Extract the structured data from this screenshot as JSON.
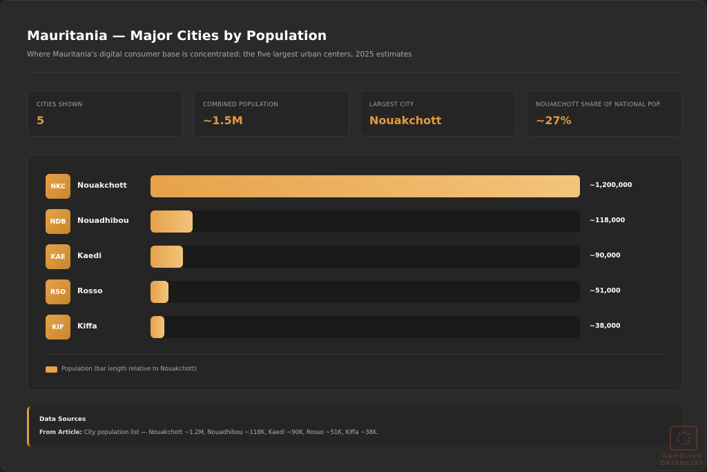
{
  "header": {
    "title": "Mauritania — Major Cities by Population",
    "subtitle": "Where Mauritania's digital consumer base is concentrated: the five largest urban centers, 2025 estimates"
  },
  "stats": [
    {
      "label": "Cities Shown",
      "value": "5"
    },
    {
      "label": "Combined Population",
      "value": "~1.5M"
    },
    {
      "label": "Largest City",
      "value": "Nouakchott"
    },
    {
      "label": "Nouakchott Share of National Pop.",
      "value": "~27%"
    }
  ],
  "chart_data": {
    "type": "bar",
    "orientation": "horizontal",
    "categories": [
      "Nouakchott",
      "Nouadhibou",
      "Kaedi",
      "Rosso",
      "Kiffa"
    ],
    "codes": [
      "NKC",
      "NDB",
      "KAE",
      "RSO",
      "KIF"
    ],
    "values": [
      1200000,
      118000,
      90000,
      51000,
      38000
    ],
    "value_labels": [
      "~1,200,000",
      "~118,000",
      "~90,000",
      "~51,000",
      "~38,000"
    ],
    "xlim": [
      0,
      1200000
    ],
    "legend": {
      "label": "Population (bar length relative to Nouakchott)",
      "placement": "bottom-left"
    },
    "bar_color": "#e6a24a"
  },
  "sources": {
    "title": "Data Sources",
    "label": "From Article:",
    "text": "City population list — Nouakchott ~1.2M, Nouadhibou ~118K, Kaedi ~90K, Rosso ~51K, Kiffa ~38K."
  },
  "watermark": {
    "line1": "GAMBLING",
    "line2": "DATABASES"
  },
  "colors": {
    "accent": "#e29a3c",
    "background": "#2a2a2a",
    "card": "#252525"
  }
}
